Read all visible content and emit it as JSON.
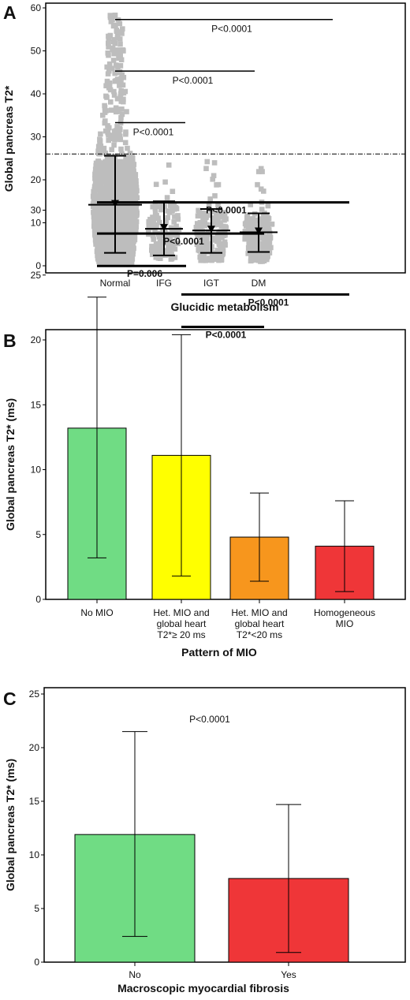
{
  "figure": {
    "panels": [
      {
        "label": "A",
        "xlabel": "Glucidic metabolism",
        "ylabel": "Global pancreas T2*"
      },
      {
        "label": "B",
        "xlabel": "Pattern of MIO",
        "ylabel": "Global pancreas T2* (ms)"
      },
      {
        "label": "C",
        "xlabel": "Macroscopic myocardial fibrosis",
        "ylabel": "Global pancreas T2* (ms)"
      }
    ]
  },
  "colors": {
    "dots": "#bdbdbd",
    "green": "#70dc84",
    "yellow": "#ffff00",
    "orange": "#f7961d",
    "red": "#ef3638",
    "frame": "#000000"
  },
  "chart_data": [
    {
      "type": "scatter",
      "title": "",
      "xlabel": "Glucidic metabolism",
      "ylabel": "Global pancreas T2*",
      "categories": [
        "Normal",
        "IFG",
        "IGT",
        "DM"
      ],
      "ylim": [
        0,
        60
      ],
      "yticks": [
        0,
        10,
        20,
        30,
        40,
        50,
        60
      ],
      "mean": [
        14.2,
        8.6,
        8.2,
        7.8
      ],
      "sd_low": [
        3,
        2.4,
        3,
        3.2
      ],
      "sd_high": [
        25.6,
        15,
        13.2,
        12.2
      ],
      "point_range": [
        [
          0.3,
          58.5
        ],
        [
          1.5,
          25.8
        ],
        [
          1.2,
          25.8
        ],
        [
          1,
          23
        ]
      ],
      "reference_line": 26,
      "brackets": [
        {
          "from": "Normal",
          "to": "DM",
          "y": 57.3,
          "text": "P<0.0001"
        },
        {
          "from": "Normal",
          "to": "IGT",
          "y": 45.3,
          "text": "P<0.0001"
        },
        {
          "from": "Normal",
          "to": "IFG",
          "y": 33.3,
          "text": "P<0.0001"
        }
      ],
      "grid": false
    },
    {
      "type": "bar",
      "title": "",
      "xlabel": "Pattern of MIO",
      "ylabel": "Global pancreas T2* (ms)",
      "categories": [
        "No MIO",
        "Het. MIO and global heart T2*≥ 20 ms",
        "Het. MIO and global heart T2*<20 ms",
        "Homogeneous MIO"
      ],
      "category_lines": [
        [
          "No MIO"
        ],
        [
          "Het. MIO and",
          "global heart",
          "T2*≥ 20 ms"
        ],
        [
          "Het. MIO and",
          "global heart",
          "T2*<20 ms"
        ],
        [
          "Homogeneous",
          "MIO"
        ]
      ],
      "values": [
        13.2,
        11.1,
        4.8,
        4.1
      ],
      "err_low": [
        3.2,
        1.8,
        1.4,
        0.6
      ],
      "err_high": [
        23.3,
        20.4,
        8.2,
        7.6
      ],
      "bar_colors": [
        "#70dc84",
        "#ffff00",
        "#f7961d",
        "#ef3638"
      ],
      "ylim": [
        0,
        30
      ],
      "yticks": [
        0,
        5,
        10,
        15,
        20,
        25,
        30
      ],
      "brackets": [
        {
          "from": "No MIO",
          "to": "Homogeneous MIO",
          "y": 30.6,
          "text": "P<0.0001"
        },
        {
          "from": "No MIO",
          "to": "Het. MIO and global heart T2*<20 ms",
          "y": 28.2,
          "text": "P<0.0001"
        },
        {
          "from": "No MIO",
          "to": "Het. MIO and global heart T2*≥ 20 ms",
          "y": 25.7,
          "text": "P=0.006"
        },
        {
          "from": "Het. MIO and global heart T2*≥ 20 ms",
          "to": "Homogeneous MIO",
          "y": 23.5,
          "text": "P<0.0001"
        },
        {
          "from": "Het. MIO and global heart T2*≥ 20 ms",
          "to": "Het. MIO and global heart T2*<20 ms",
          "y": 21.0,
          "text": "P<0.0001"
        }
      ],
      "grid": false
    },
    {
      "type": "bar",
      "title": "",
      "xlabel": "Macroscopic myocardial fibrosis",
      "ylabel": "Global pancreas T2* (ms)",
      "categories": [
        "No",
        "Yes"
      ],
      "values": [
        11.9,
        7.8
      ],
      "err_low": [
        2.4,
        0.9
      ],
      "err_high": [
        21.5,
        14.7
      ],
      "bar_colors": [
        "#70dc84",
        "#ef3638"
      ],
      "ylim": [
        0,
        25
      ],
      "yticks": [
        0,
        5,
        10,
        15,
        20,
        25
      ],
      "annotation": "P<0.0001",
      "grid": false
    }
  ]
}
